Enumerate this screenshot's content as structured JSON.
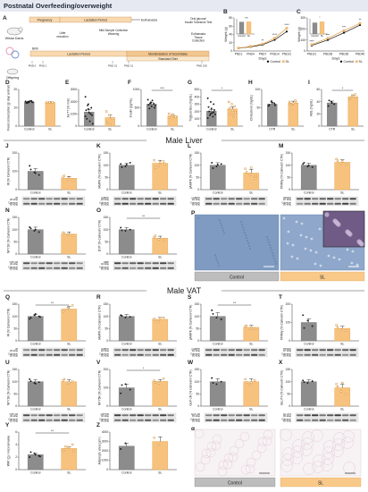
{
  "figure": {
    "title": "Postnatal Overfeeding/overweight",
    "section_liver": "Male Liver",
    "section_vat": "Male VAT",
    "control_color": "#8c8c8c",
    "sl_color": "#f6c27e",
    "sl_edge_color": "#e8a34a",
    "axis_color": "#333333",
    "tissue_blue": "#7f9bc2",
    "tissue_pink": "#e7d8e0",
    "scale_bar_label": "100 µm",
    "legend": {
      "control": "Control",
      "sl": "SL"
    }
  },
  "design": {
    "label": "A",
    "dams_label": "Wistar Dams",
    "offspring_label": "Offspring",
    "pregnancy": "Pregnancy",
    "lactation_top": "Lactation Period",
    "euthanasia_top": "Euthanasia",
    "milk_collection": "Milk Sample Collection\nWeaning",
    "oral_test": "Oral glucose\nInsulin Tolerance Test",
    "euth_tissue": "Euthanasia\nTissue\nCollection",
    "litter_reduction": "Litter\nreduction",
    "birth": "Birth",
    "lactation_bottom": "Lactation Period",
    "monitor": "Monitorization of food intake",
    "standard_diet": "Standard Diet",
    "pnd_labels": [
      "PND 0",
      "PND 1",
      "PND 21",
      "PND 21",
      "PND 150"
    ]
  },
  "panels": [
    {
      "label": "D",
      "ylabel": "Food consumption (g/ day/ animal)",
      "categories": [
        "Control",
        "SL"
      ],
      "values": [
        13.2,
        13.0
      ],
      "err": [
        0.4,
        0.2
      ],
      "ylim": [
        0,
        20
      ],
      "yticks": [
        0,
        10,
        20
      ],
      "points": [
        [
          13.5,
          12.9,
          13.8,
          12.7,
          13.4,
          13.1,
          12.6,
          13.6,
          13.0,
          13.3
        ],
        [
          13.0,
          13.0,
          13.0
        ]
      ],
      "sig": ""
    },
    {
      "label": "E",
      "ylabel": "AUTT (% /min)",
      "categories": [
        "Control",
        "SL"
      ],
      "values": [
        1150,
        700
      ],
      "err": [
        200,
        200
      ],
      "ylim": [
        0,
        3000
      ],
      "yticks": [
        0,
        1000,
        2000,
        3000
      ],
      "points": [
        [
          2400,
          1800,
          1500,
          1300,
          1100,
          900,
          600,
          400,
          200,
          1700,
          1000,
          800,
          1400
        ],
        [
          1200,
          900,
          600,
          300,
          100
        ]
      ],
      "sig": ""
    },
    {
      "label": "F",
      "ylabel": "Insulin (pg/mL)",
      "categories": [
        "Control",
        "SL"
      ],
      "values": [
        600,
        280
      ],
      "err": [
        40,
        35
      ],
      "ylim": [
        0,
        1000
      ],
      "yticks": [
        0,
        500,
        1000
      ],
      "points": [
        [
          720,
          650,
          610,
          580,
          540,
          500,
          480,
          700,
          560,
          620
        ],
        [
          340,
          290,
          260,
          230,
          320,
          250
        ]
      ],
      "sig": "***"
    },
    {
      "label": "G",
      "ylabel": "Triglycerides (mg/dL)",
      "categories": [
        "Control",
        "SL"
      ],
      "values": [
        205,
        235
      ],
      "err": [
        20,
        30
      ],
      "ylim": [
        0,
        500
      ],
      "yticks": [
        0,
        100,
        200,
        300,
        400,
        500
      ],
      "points": [
        [
          380,
          330,
          300,
          260,
          240,
          220,
          200,
          180,
          160,
          150,
          130,
          110,
          170,
          190
        ],
        [
          330,
          300,
          270,
          240,
          210,
          190,
          160,
          140
        ]
      ],
      "sig": "*"
    },
    {
      "label": "H",
      "ylabel": "Cholesterol (mg/dL)",
      "categories": [
        "CTR",
        "SL"
      ],
      "values": [
        60,
        63
      ],
      "err": [
        5,
        5
      ],
      "ylim": [
        0,
        100
      ],
      "yticks": [
        0,
        50,
        100
      ],
      "points": [
        [
          55,
          68,
          62,
          58,
          64,
          57
        ],
        [
          66,
          60,
          70,
          59,
          62,
          65
        ]
      ],
      "sig": ""
    },
    {
      "label": "I",
      "ylabel": "HDL (mg/dL)",
      "categories": [
        "CTR",
        "SL"
      ],
      "values": [
        38,
        48
      ],
      "err": [
        3,
        3
      ],
      "ylim": [
        0,
        60
      ],
      "yticks": [
        0,
        20,
        40,
        60
      ],
      "points": [
        [
          33,
          40,
          36,
          42,
          38
        ],
        [
          44,
          50,
          52,
          46,
          49,
          47
        ]
      ],
      "sig": "*"
    },
    {
      "label": "J",
      "ylabel": "IR (% Calnexin/ CTR)",
      "categories": [
        "Control",
        "SL"
      ],
      "values": [
        100,
        62
      ],
      "err": [
        15,
        10
      ],
      "ylim": [
        0,
        200
      ],
      "yticks": [
        0,
        100,
        200
      ],
      "points": [
        [
          130,
          95,
          80,
          110,
          90
        ],
        [
          70,
          55,
          50,
          75,
          65
        ]
      ],
      "sig": "",
      "blot_labels": [
        "IR",
        "Calnexin"
      ],
      "blot_kda": [
        "(95 kDa)",
        "(90 kDa)"
      ]
    },
    {
      "label": "K",
      "ylabel": "tAMPK (% Calnexin/ CTR)",
      "categories": [
        "Control",
        "SL"
      ],
      "values": [
        100,
        108
      ],
      "err": [
        8,
        12
      ],
      "ylim": [
        0,
        150
      ],
      "yticks": [
        0,
        50,
        100,
        150
      ],
      "points": [
        [
          105,
          95,
          110,
          92,
          102
        ],
        [
          120,
          98,
          115,
          90,
          112,
          104
        ]
      ],
      "sig": "",
      "blot_labels": [
        "tAMPK",
        "Calnexin"
      ],
      "blot_kda": [
        "(62 kDa)",
        "(90 kDa)"
      ]
    },
    {
      "label": "L",
      "ylabel": "pAMPK (% Calnexin/ CTR)",
      "categories": [
        "Control",
        "SL"
      ],
      "values": [
        100,
        68
      ],
      "err": [
        10,
        15
      ],
      "ylim": [
        0,
        150
      ],
      "yticks": [
        0,
        50,
        100,
        150
      ],
      "points": [
        [
          110,
          95,
          105,
          88,
          102
        ],
        [
          85,
          60,
          45,
          72,
          90,
          55
        ]
      ],
      "sig": "",
      "blot_labels": [
        "pAMPK",
        "Calnexin"
      ],
      "blot_kda": [
        "(62 kDa)",
        "(90 kDa)"
      ]
    },
    {
      "label": "M",
      "ylabel": "PPARγ (% Calnexin/ CTR)",
      "categories": [
        "Control",
        "SL"
      ],
      "values": [
        100,
        112
      ],
      "err": [
        8,
        10
      ],
      "ylim": [
        0,
        150
      ],
      "yticks": [
        0,
        50,
        100,
        150
      ],
      "points": [
        [
          105,
          95,
          92,
          110,
          98
        ],
        [
          125,
          108,
          100,
          118,
          115
        ]
      ],
      "sig": "",
      "blot_labels": [
        "PPARγ",
        "Calnexin"
      ],
      "blot_kda": [
        "(57 kDa)",
        "(90 kDa)"
      ]
    },
    {
      "label": "N",
      "ylabel": "NPY1R (% Calnexin/ CTR)",
      "categories": [
        "Control",
        "SL"
      ],
      "values": [
        100,
        82
      ],
      "err": [
        10,
        8
      ],
      "ylim": [
        0,
        150
      ],
      "yticks": [
        0,
        50,
        100,
        150
      ],
      "points": [
        [
          110,
          95,
          90,
          105,
          100
        ],
        [
          88,
          80,
          75,
          85
        ]
      ],
      "sig": "",
      "blot_labels": [
        "NPY1R",
        "Calnexin"
      ],
      "blot_kda": [
        "(44 kDa)",
        "(90 kDa)"
      ]
    },
    {
      "label": "O",
      "ylabel": "DYP (% Calnexin/ CTR)",
      "categories": [
        "Control",
        "SL"
      ],
      "values": [
        100,
        65
      ],
      "err": [
        8,
        8
      ],
      "ylim": [
        0,
        150
      ],
      "yticks": [
        0,
        50,
        100,
        150
      ],
      "points": [
        [
          108,
          95,
          100,
          97
        ],
        [
          70,
          60,
          55,
          75
        ]
      ],
      "sig": "**",
      "blot_labels": [
        "DBP",
        "Calnexin"
      ],
      "blot_kda": [
        "(90 kDa)",
        "(90 kDa)"
      ]
    },
    {
      "label": "Q",
      "ylabel": "IR (% Calnexin/ CTR)",
      "categories": [
        "Control",
        "SL"
      ],
      "values": [
        100,
        130
      ],
      "err": [
        8,
        10
      ],
      "ylim": [
        0,
        150
      ],
      "yticks": [
        0,
        50,
        100,
        150
      ],
      "points": [
        [
          90,
          105,
          100,
          95,
          110,
          98
        ],
        [
          120,
          135,
          145,
          125,
          128
        ]
      ],
      "sig": "**",
      "blot_labels": [
        "IR",
        "Calnexin"
      ],
      "blot_kda": [
        "(95 kDa)",
        "(90 kDa)"
      ]
    },
    {
      "label": "R",
      "ylabel": "tAMPK (% Calnexin/ CTR)",
      "categories": [
        "Control",
        "SL"
      ],
      "values": [
        100,
        88
      ],
      "err": [
        8,
        8
      ],
      "ylim": [
        0,
        150
      ],
      "yticks": [
        0,
        50,
        100,
        150
      ],
      "points": [
        [
          105,
          95,
          98,
          102
        ],
        [
          90,
          80,
          95,
          85,
          92
        ]
      ],
      "sig": "",
      "blot_labels": [
        "tAMPK",
        "Calnexin"
      ],
      "blot_kda": [
        "(62 kDa)",
        "(90 kDa)"
      ]
    },
    {
      "label": "S",
      "ylabel": "pAMPK (% Calnexin/ CTR)",
      "categories": [
        "Control",
        "SL"
      ],
      "values": [
        100,
        55
      ],
      "err": [
        15,
        8
      ],
      "ylim": [
        0,
        150
      ],
      "yticks": [
        0,
        50,
        100,
        150
      ],
      "points": [
        [
          125,
          95,
          88,
          110
        ],
        [
          60,
          50,
          48,
          62,
          55
        ]
      ],
      "sig": "**",
      "blot_labels": [
        "pAMPK",
        "Calnexin"
      ],
      "blot_kda": [
        "(62 kDa)",
        "(90 kDa)"
      ]
    },
    {
      "label": "T",
      "ylabel": "PPARγ (% Calnexin/ CTR)",
      "categories": [
        "Control",
        "SL"
      ],
      "values": [
        100,
        68
      ],
      "err": [
        20,
        12
      ],
      "ylim": [
        0,
        200
      ],
      "yticks": [
        0,
        100,
        200
      ],
      "points": [
        [
          140,
          110,
          80,
          70
        ],
        [
          85,
          60,
          55,
          75
        ]
      ],
      "sig": "",
      "blot_labels": [
        "PPARγ",
        "Calnexin"
      ],
      "blot_kda": [
        "(57 kDa)",
        "(90 kDa)"
      ]
    },
    {
      "label": "U",
      "ylabel": "NPY1R (% Calnexin/ CTR)",
      "categories": [
        "Control",
        "SL"
      ],
      "values": [
        100,
        100
      ],
      "err": [
        8,
        8
      ],
      "ylim": [
        0,
        150
      ],
      "yticks": [
        0,
        50,
        100,
        150
      ],
      "points": [
        [
          110,
          95,
          98,
          102,
          92
        ],
        [
          105,
          92,
          100,
          110,
          96
        ]
      ],
      "sig": "",
      "blot_labels": [
        "NPY1R",
        "Calnexin"
      ],
      "blot_kda": [
        "(44 kDa)",
        "(90 kDa)"
      ]
    },
    {
      "label": "V",
      "ylabel": "NPY5R (% Calnexin/ CTR)",
      "categories": [
        "Control",
        "SL"
      ],
      "values": [
        100,
        135
      ],
      "err": [
        20,
        10
      ],
      "ylim": [
        0,
        200
      ],
      "yticks": [
        0,
        100,
        200
      ],
      "points": [
        [
          70,
          120,
          90,
          115
        ],
        [
          140,
          125,
          150,
          130
        ]
      ],
      "sig": "*",
      "blot_labels": [
        "NPY5R",
        "Calnexin"
      ],
      "blot_kda": [
        "(50 kDa)",
        "(90 kDa)"
      ]
    },
    {
      "label": "W",
      "ylabel": "GLP-1R (% Calnexin/ CTR)",
      "categories": [
        "Control",
        "SL"
      ],
      "values": [
        100,
        100
      ],
      "err": [
        12,
        12
      ],
      "ylim": [
        0,
        150
      ],
      "yticks": [
        0,
        50,
        100,
        150
      ],
      "points": [
        [
          115,
          90,
          100,
          95
        ],
        [
          110,
          88,
          105,
          98,
          96
        ]
      ],
      "sig": "",
      "blot_labels": [
        "GLP-1R",
        "Calnexin"
      ],
      "blot_kda": [
        "(53 kDa)",
        "(90 kDa)"
      ]
    },
    {
      "label": "X",
      "ylabel": "GLUT4 (% Calnexin/ CTR)",
      "categories": [
        "Control",
        "SL"
      ],
      "values": [
        100,
        75
      ],
      "err": [
        8,
        15
      ],
      "ylim": [
        0,
        150
      ],
      "yticks": [
        0,
        50,
        100,
        150
      ],
      "points": [
        [
          105,
          95,
          102,
          98
        ],
        [
          90,
          60,
          50,
          80,
          95
        ]
      ],
      "sig": "",
      "blot_labels": [
        "GLUT4",
        "Calnexin"
      ],
      "blot_kda": [
        "(54 kDa)",
        "(90 kDa)"
      ]
    },
    {
      "label": "Y",
      "ylabel": "WAT (g) / visceral value",
      "categories": [
        "Control",
        "SL"
      ],
      "values": [
        2.4,
        3.4
      ],
      "err": [
        0.2,
        0.25
      ],
      "ylim": [
        0,
        6
      ],
      "yticks": [
        0,
        2,
        4,
        6
      ],
      "points": [
        [
          2.0,
          2.6,
          2.2,
          2.8,
          2.4,
          2.1
        ],
        [
          3.0,
          3.6,
          4.0,
          3.2,
          3.5,
          2.9,
          3.7
        ]
      ],
      "sig": "**"
    },
    {
      "label": "Z",
      "ylabel": "Adipocyte area (µm²)",
      "categories": [
        "Control",
        "SL"
      ],
      "values": [
        2500,
        3000
      ],
      "err": [
        300,
        500
      ],
      "ylim": [
        0,
        4000
      ],
      "yticks": [
        0,
        1000,
        2000,
        3000,
        4000
      ],
      "points": [
        [
          2200,
          2800
        ],
        [
          3400,
          2600
        ]
      ],
      "sig": ""
    }
  ],
  "growth_b": {
    "label": "B",
    "ylabel": "Weight (g)",
    "xlabel": "Days",
    "x": [
      "PND1",
      "PND4",
      "PND7",
      "PND14",
      "PND21"
    ],
    "ylim": [
      0,
      80
    ],
    "yticks": [
      0,
      20,
      40,
      60,
      80
    ],
    "series": [
      {
        "name": "Control",
        "values": [
          7,
          10,
          15,
          27,
          47
        ]
      },
      {
        "name": "SL",
        "values": [
          7,
          11,
          17,
          31,
          55
        ]
      }
    ],
    "sig": [
      "",
      "",
      "**",
      "****",
      "****"
    ],
    "inset": {
      "categories": [
        "Control",
        "SL"
      ],
      "values": [
        7.0,
        7.1
      ],
      "sig": "ns"
    }
  },
  "growth_c": {
    "label": "C",
    "ylabel": "Weight (g)",
    "xlabel": "Days",
    "x": [
      "PND21",
      "PND28",
      "PND35",
      "PND45"
    ],
    "ylim": [
      0,
      300
    ],
    "yticks": [
      0,
      100,
      200,
      300
    ],
    "series": [
      {
        "name": "Control",
        "values": [
          50,
          100,
          165,
          235
        ]
      },
      {
        "name": "SL",
        "values": [
          58,
          115,
          185,
          250
        ]
      }
    ],
    "sig": [
      "****",
      "***",
      "***",
      "**"
    ],
    "inset": {
      "categories": [
        "Control",
        "SL"
      ],
      "values": [
        180,
        196
      ],
      "sig": "*"
    }
  },
  "histology": {
    "p_label": "P",
    "alpha_label": "α",
    "control_caption": "Control",
    "sl_caption": "SL"
  }
}
